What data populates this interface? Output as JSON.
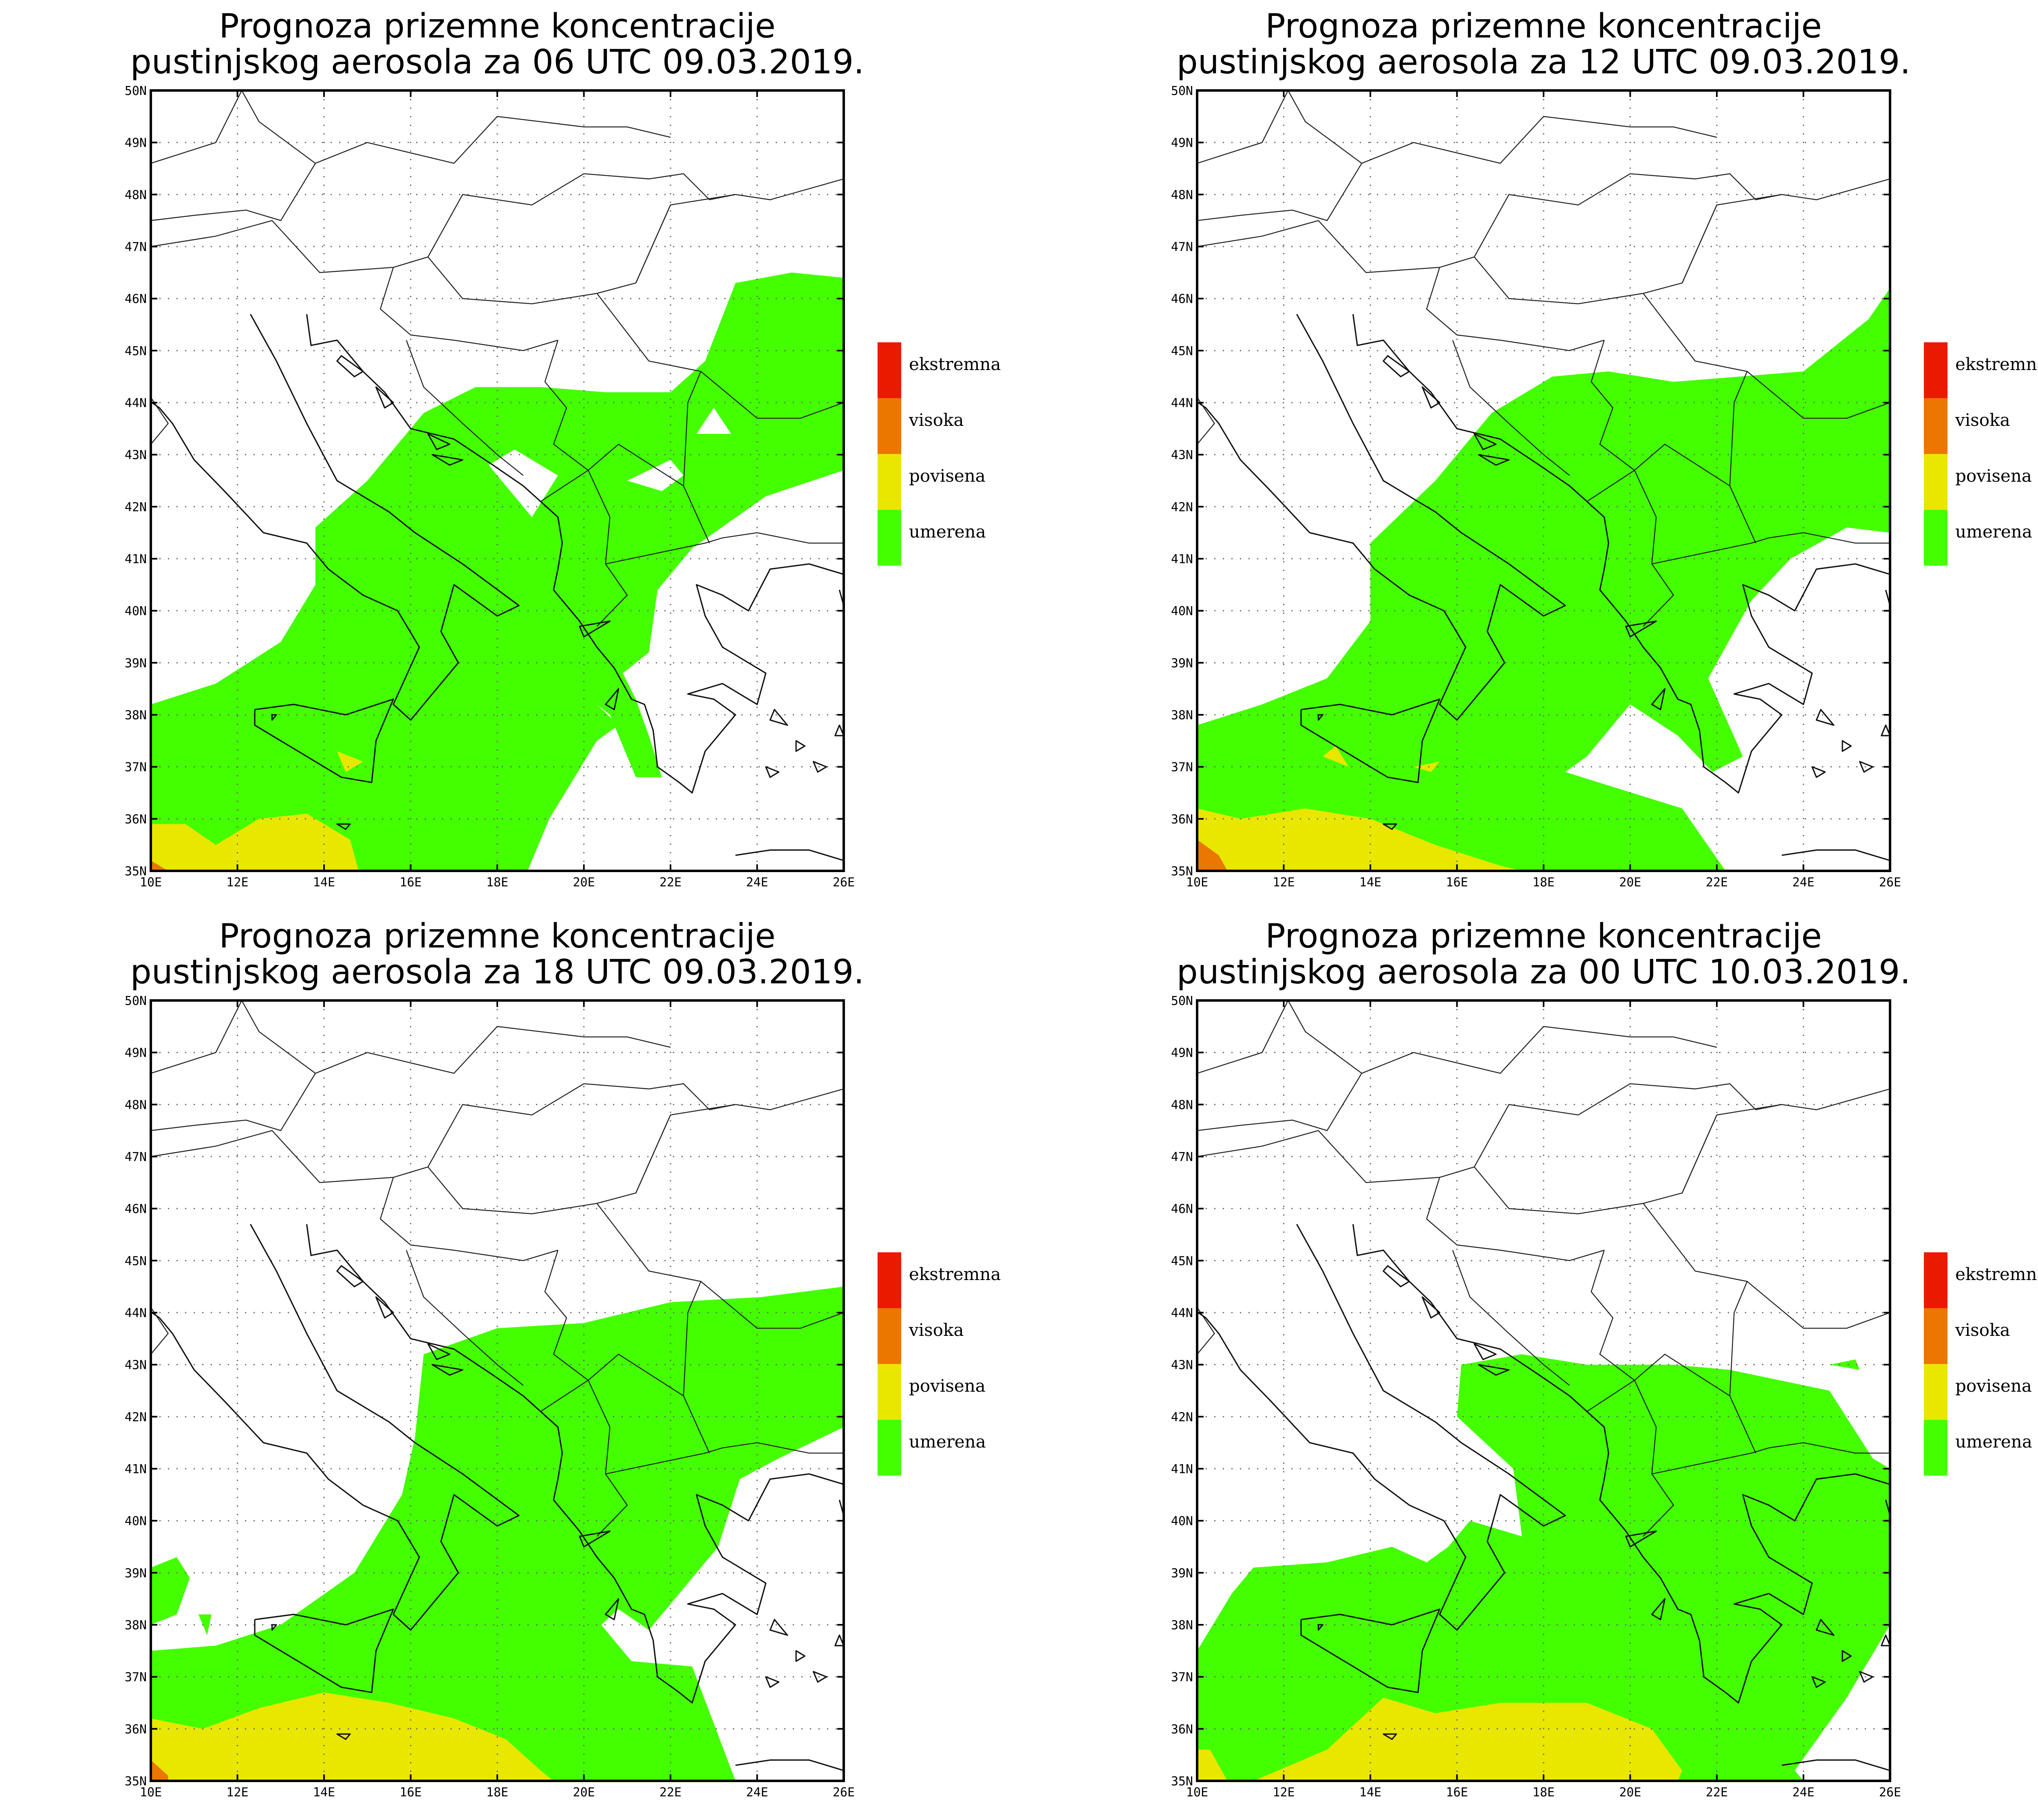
{
  "colors": {
    "umerena": "#44ff00",
    "povisena": "#e9e600",
    "visoka": "#e97700",
    "ekstremna": "#ea1a00"
  },
  "axes": {
    "lon_ticks": [
      "10E",
      "12E",
      "14E",
      "16E",
      "18E",
      "20E",
      "22E",
      "24E",
      "26E"
    ],
    "lat_ticks": [
      "35N",
      "36N",
      "37N",
      "38N",
      "39N",
      "40N",
      "41N",
      "42N",
      "43N",
      "44N",
      "45N",
      "46N",
      "47N",
      "48N",
      "49N",
      "50N"
    ],
    "lon_range": [
      10,
      26
    ],
    "lat_range": [
      35,
      50
    ]
  },
  "legend": [
    {
      "key": "ekstremna",
      "label": "ekstremna"
    },
    {
      "key": "visoka",
      "label": "visoka"
    },
    {
      "key": "povisena",
      "label": "povisena"
    },
    {
      "key": "umerena",
      "label": "umerena"
    }
  ],
  "panels": [
    {
      "title_line1": "Prognoza prizemne koncentracije",
      "title_line2": "pustinjskog aerosola za 06 UTC 09.03.2019.",
      "umerena": [
        [
          10,
          38.2
        ],
        [
          11.5,
          38.6
        ],
        [
          13,
          39.4
        ],
        [
          13.8,
          40.5
        ],
        [
          13.8,
          41.6
        ],
        [
          15,
          42.5
        ],
        [
          16.3,
          43.8
        ],
        [
          17.5,
          44.3
        ],
        [
          19,
          44.3
        ],
        [
          20.5,
          44.2
        ],
        [
          22,
          44.2
        ],
        [
          22.8,
          44.8
        ],
        [
          23.5,
          46.3
        ],
        [
          24.8,
          46.5
        ],
        [
          26,
          46.4
        ],
        [
          26,
          42.7
        ],
        [
          24.2,
          42.2
        ],
        [
          22.5,
          41.2
        ],
        [
          21.7,
          40.4
        ],
        [
          21.5,
          39.2
        ],
        [
          20.9,
          38.8
        ],
        [
          21.2,
          38.3
        ],
        [
          21.5,
          37.6
        ],
        [
          21.8,
          36.8
        ],
        [
          21.2,
          36.8
        ],
        [
          20.6,
          38.0
        ],
        [
          20.3,
          38.2
        ],
        [
          20.8,
          37.8
        ],
        [
          20.3,
          37.5
        ],
        [
          19.2,
          36.0
        ],
        [
          18.7,
          35
        ],
        [
          10,
          35
        ]
      ],
      "povisena": [
        [
          10,
          35.9
        ],
        [
          10.8,
          35.9
        ],
        [
          11.5,
          35.5
        ],
        [
          12.5,
          36.0
        ],
        [
          13.6,
          36.1
        ],
        [
          14.6,
          35.6
        ],
        [
          14.8,
          35
        ],
        [
          10,
          35
        ]
      ],
      "visoka": [
        [
          10,
          35.2
        ],
        [
          10.4,
          35.0
        ],
        [
          10,
          35.0
        ]
      ],
      "holes": [
        [
          [
            17.8,
            42.8
          ],
          [
            18.8,
            41.8
          ],
          [
            19.4,
            42.6
          ],
          [
            18.4,
            43.1
          ]
        ],
        [
          [
            21.0,
            42.5
          ],
          [
            21.8,
            42.3
          ],
          [
            22.3,
            42.6
          ],
          [
            22.0,
            42.9
          ]
        ],
        [
          [
            22.6,
            43.4
          ],
          [
            23.0,
            43.9
          ],
          [
            23.4,
            43.4
          ]
        ]
      ],
      "povisena_blobs": [
        [
          [
            14.3,
            37.3
          ],
          [
            14.9,
            37.1
          ],
          [
            14.5,
            36.9
          ]
        ]
      ]
    },
    {
      "title_line1": "Prognoza prizemne koncentracije",
      "title_line2": "pustinjskog aerosola za 12 UTC 09.03.2019.",
      "umerena": [
        [
          10,
          37.8
        ],
        [
          11.5,
          38.2
        ],
        [
          13,
          38.7
        ],
        [
          14,
          39.8
        ],
        [
          14,
          41.3
        ],
        [
          15.5,
          42.5
        ],
        [
          16.8,
          43.8
        ],
        [
          18.2,
          44.5
        ],
        [
          19.5,
          44.6
        ],
        [
          21,
          44.4
        ],
        [
          22.5,
          44.5
        ],
        [
          24,
          44.6
        ],
        [
          25.5,
          45.6
        ],
        [
          26,
          46.2
        ],
        [
          26,
          41.5
        ],
        [
          25,
          41.6
        ],
        [
          23.7,
          41.0
        ],
        [
          22.8,
          40.2
        ],
        [
          21.8,
          38.7
        ],
        [
          22.6,
          37.2
        ],
        [
          21.9,
          36.9
        ],
        [
          21.1,
          37.6
        ],
        [
          20,
          38.2
        ],
        [
          19.0,
          37.2
        ],
        [
          18.5,
          36.9
        ],
        [
          21.2,
          36.2
        ],
        [
          22.2,
          35
        ],
        [
          10,
          35
        ]
      ],
      "povisena": [
        [
          10,
          36.2
        ],
        [
          11,
          36.0
        ],
        [
          12.5,
          36.2
        ],
        [
          14,
          36.0
        ],
        [
          15.5,
          35.5
        ],
        [
          17,
          35.1
        ],
        [
          17.5,
          35
        ],
        [
          10,
          35
        ]
      ],
      "visoka": [
        [
          10,
          35.6
        ],
        [
          10.5,
          35.3
        ],
        [
          10.7,
          35
        ],
        [
          10,
          35
        ]
      ],
      "holes": [],
      "povisena_blobs": [
        [
          [
            13.2,
            37.4
          ],
          [
            13.5,
            37.0
          ],
          [
            12.9,
            37.2
          ]
        ],
        [
          [
            15.0,
            37.0
          ],
          [
            15.6,
            37.1
          ],
          [
            15.4,
            36.9
          ]
        ]
      ]
    },
    {
      "title_line1": "Prognoza prizemne koncentracije",
      "title_line2": "pustinjskog aerosola za 18 UTC 09.03.2019.",
      "umerena": [
        [
          10,
          37.5
        ],
        [
          11.5,
          37.6
        ],
        [
          13,
          38.0
        ],
        [
          14.7,
          39.0
        ],
        [
          15.8,
          40.5
        ],
        [
          16.1,
          41.6
        ],
        [
          16.3,
          43.2
        ],
        [
          18,
          43.7
        ],
        [
          20,
          43.8
        ],
        [
          22,
          44.2
        ],
        [
          24.1,
          44.3
        ],
        [
          26,
          44.5
        ],
        [
          26,
          41.8
        ],
        [
          24.5,
          41.2
        ],
        [
          23.6,
          40.8
        ],
        [
          23.1,
          39.5
        ],
        [
          22.2,
          38.6
        ],
        [
          21.5,
          37.9
        ],
        [
          20.8,
          38.3
        ],
        [
          20.4,
          38.0
        ],
        [
          21.1,
          37.3
        ],
        [
          22.5,
          37.2
        ],
        [
          23.5,
          35
        ],
        [
          10,
          35
        ]
      ],
      "povisena": [
        [
          10,
          36.2
        ],
        [
          11.2,
          36.0
        ],
        [
          12.5,
          36.4
        ],
        [
          14,
          36.7
        ],
        [
          15.5,
          36.5
        ],
        [
          17,
          36.2
        ],
        [
          18.2,
          35.8
        ],
        [
          19,
          35.2
        ],
        [
          19.3,
          35
        ],
        [
          10,
          35
        ]
      ],
      "visoka": [
        [
          10,
          35.4
        ],
        [
          10.4,
          35.1
        ],
        [
          10.4,
          35
        ],
        [
          10,
          35
        ]
      ],
      "holes": [],
      "extra_blobs": [
        [
          [
            10,
            38.0
          ],
          [
            10.6,
            38.2
          ],
          [
            10.9,
            38.9
          ],
          [
            10.6,
            39.3
          ],
          [
            10,
            39.1
          ]
        ],
        [
          [
            11.1,
            38.2
          ],
          [
            11.4,
            38.2
          ],
          [
            11.3,
            37.8
          ]
        ]
      ],
      "povisena_blobs": []
    },
    {
      "title_line1": "Prognoza prizemne koncentracije",
      "title_line2": "pustinjskog aerosola za 00 UTC 10.03.2019.",
      "umerena": [
        [
          10,
          37.5
        ],
        [
          10.8,
          38.6
        ],
        [
          11.3,
          39.1
        ],
        [
          13,
          39.2
        ],
        [
          14.5,
          39.5
        ],
        [
          15.3,
          39.2
        ],
        [
          15.8,
          39.5
        ],
        [
          16.3,
          40.0
        ],
        [
          17.5,
          39.7
        ],
        [
          17.3,
          41.0
        ],
        [
          16,
          42.0
        ],
        [
          16.1,
          43.0
        ],
        [
          17.5,
          43.2
        ],
        [
          19,
          43.0
        ],
        [
          21,
          43.0
        ],
        [
          22.3,
          42.9
        ],
        [
          24.6,
          42.5
        ],
        [
          25.6,
          41.2
        ],
        [
          26,
          41.0
        ],
        [
          26,
          38
        ],
        [
          25.0,
          36.6
        ],
        [
          23.8,
          35.2
        ],
        [
          24.0,
          35
        ],
        [
          10,
          35
        ]
      ],
      "povisena": [
        [
          11.3,
          35
        ],
        [
          13,
          35.6
        ],
        [
          14.3,
          36.6
        ],
        [
          15.5,
          36.3
        ],
        [
          17,
          36.5
        ],
        [
          19,
          36.5
        ],
        [
          20.5,
          36.0
        ],
        [
          21.2,
          35.2
        ],
        [
          21.1,
          35
        ],
        [
          11.2,
          35
        ]
      ],
      "visoka": [],
      "holes": [],
      "extra_blobs": [
        [
          [
            24.6,
            43.0
          ],
          [
            25.2,
            43.1
          ],
          [
            25.3,
            42.9
          ]
        ],
        [
          [
            10,
            35.2
          ],
          [
            10.2,
            36.4
          ],
          [
            10.9,
            36.1
          ],
          [
            10.2,
            35
          ]
        ]
      ],
      "povisena_blobs": [
        [
          [
            10,
            35
          ],
          [
            10.7,
            35.0
          ],
          [
            10.3,
            35.6
          ],
          [
            10,
            35.6
          ]
        ]
      ]
    }
  ]
}
